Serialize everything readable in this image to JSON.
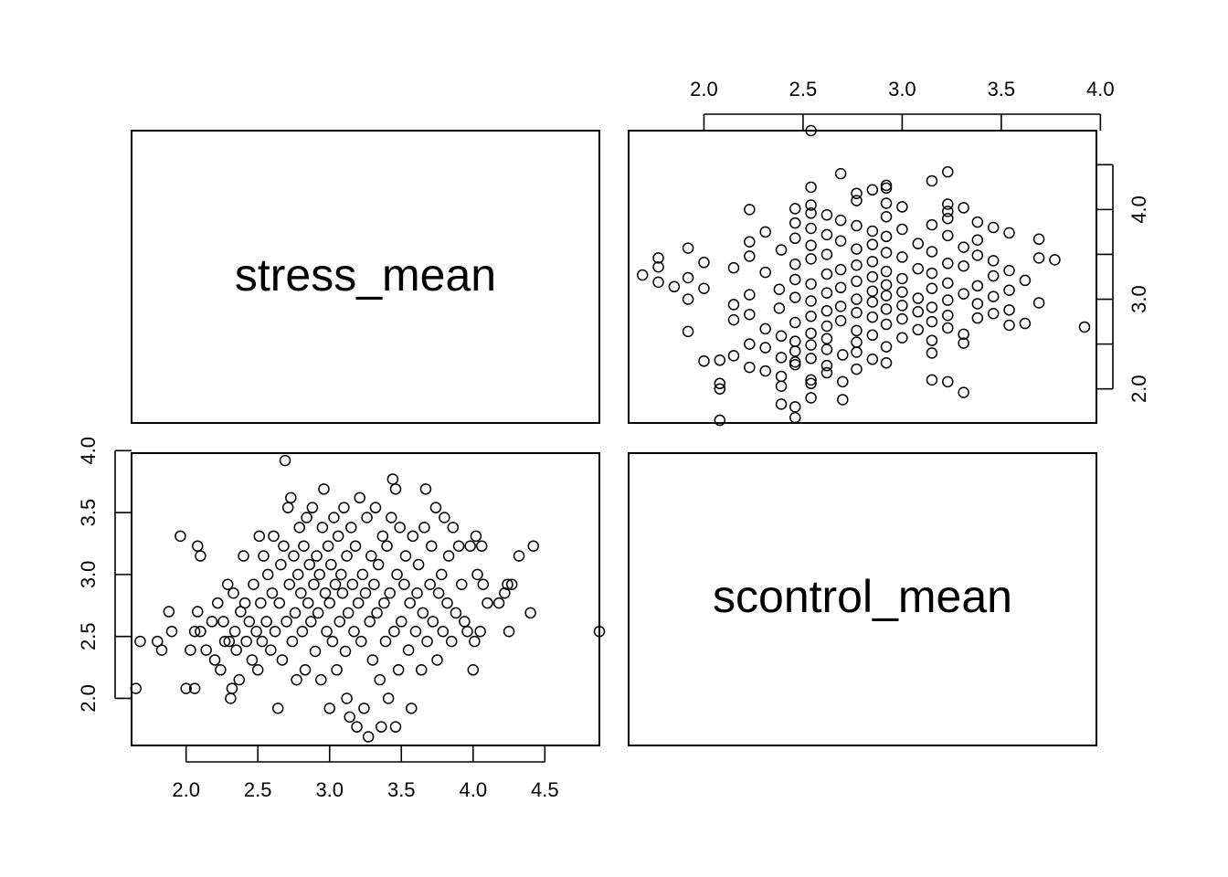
{
  "chart_data": {
    "type": "scatter",
    "title": "",
    "variables": [
      "stress_mean",
      "scontrol_mean"
    ],
    "x_stress_ticks": [
      "2.0",
      "2.5",
      "3.0",
      "3.5",
      "4.0"
    ],
    "y_scontrol_ticks": [
      "2.0",
      "2.5",
      "3.0",
      "3.5",
      "4.0"
    ],
    "x_scontrol_ticks": [
      "2.0",
      "2.5",
      "3.0",
      "3.5",
      "4.0",
      "4.5"
    ],
    "y_stress_ticks": [
      "2.0",
      "2.5",
      "3.0",
      "3.5",
      "4.0"
    ],
    "stress_range": [
      1.62,
      3.98
    ],
    "scontrol_range": [
      1.62,
      4.88
    ],
    "points_note": "pairs are [scontrol_mean, stress_mean]",
    "points": [
      [
        1.65,
        2.08
      ],
      [
        1.68,
        2.46
      ],
      [
        1.8,
        2.46
      ],
      [
        1.83,
        2.39
      ],
      [
        1.88,
        2.7
      ],
      [
        1.9,
        2.54
      ],
      [
        1.96,
        3.31
      ],
      [
        2.0,
        2.08
      ],
      [
        2.03,
        2.39
      ],
      [
        2.06,
        2.08
      ],
      [
        2.06,
        2.54
      ],
      [
        2.08,
        3.23
      ],
      [
        2.08,
        2.7
      ],
      [
        2.1,
        3.15
      ],
      [
        2.1,
        2.54
      ],
      [
        2.14,
        2.39
      ],
      [
        2.18,
        2.62
      ],
      [
        2.2,
        2.31
      ],
      [
        2.22,
        2.77
      ],
      [
        2.24,
        2.23
      ],
      [
        2.26,
        2.62
      ],
      [
        2.27,
        2.46
      ],
      [
        2.29,
        2.92
      ],
      [
        2.3,
        2.46
      ],
      [
        2.31,
        2.0
      ],
      [
        2.32,
        2.08
      ],
      [
        2.33,
        2.85
      ],
      [
        2.34,
        2.54
      ],
      [
        2.35,
        2.39
      ],
      [
        2.37,
        2.15
      ],
      [
        2.38,
        2.7
      ],
      [
        2.4,
        3.15
      ],
      [
        2.41,
        2.77
      ],
      [
        2.42,
        2.46
      ],
      [
        2.44,
        2.62
      ],
      [
        2.46,
        2.31
      ],
      [
        2.47,
        2.92
      ],
      [
        2.49,
        2.54
      ],
      [
        2.5,
        2.23
      ],
      [
        2.51,
        3.31
      ],
      [
        2.52,
        2.77
      ],
      [
        2.53,
        2.46
      ],
      [
        2.54,
        3.15
      ],
      [
        2.56,
        2.62
      ],
      [
        2.57,
        3.0
      ],
      [
        2.59,
        2.39
      ],
      [
        2.6,
        2.85
      ],
      [
        2.61,
        3.31
      ],
      [
        2.62,
        2.54
      ],
      [
        2.64,
        1.92
      ],
      [
        2.65,
        2.77
      ],
      [
        2.66,
        3.08
      ],
      [
        2.67,
        2.31
      ],
      [
        2.68,
        3.23
      ],
      [
        2.69,
        3.92
      ],
      [
        2.7,
        2.62
      ],
      [
        2.71,
        3.54
      ],
      [
        2.72,
        2.92
      ],
      [
        2.73,
        3.62
      ],
      [
        2.74,
        2.46
      ],
      [
        2.75,
        3.15
      ],
      [
        2.76,
        2.69
      ],
      [
        2.77,
        2.15
      ],
      [
        2.78,
        3.0
      ],
      [
        2.79,
        3.38
      ],
      [
        2.8,
        2.85
      ],
      [
        2.81,
        2.54
      ],
      [
        2.82,
        3.23
      ],
      [
        2.83,
        2.23
      ],
      [
        2.84,
        3.46
      ],
      [
        2.85,
        2.77
      ],
      [
        2.86,
        3.08
      ],
      [
        2.87,
        2.62
      ],
      [
        2.88,
        3.54
      ],
      [
        2.89,
        2.92
      ],
      [
        2.9,
        2.38
      ],
      [
        2.91,
        3.15
      ],
      [
        2.92,
        2.69
      ],
      [
        2.93,
        3.0
      ],
      [
        2.94,
        2.15
      ],
      [
        2.95,
        3.38
      ],
      [
        2.96,
        3.69
      ],
      [
        2.97,
        2.85
      ],
      [
        2.98,
        2.54
      ],
      [
        2.99,
        3.23
      ],
      [
        3.0,
        1.92
      ],
      [
        3.0,
        2.77
      ],
      [
        3.01,
        3.08
      ],
      [
        3.02,
        2.46
      ],
      [
        3.03,
        3.46
      ],
      [
        3.04,
        2.92
      ],
      [
        3.05,
        2.23
      ],
      [
        3.06,
        3.31
      ],
      [
        3.07,
        2.62
      ],
      [
        3.08,
        3.0
      ],
      [
        3.09,
        2.85
      ],
      [
        3.1,
        3.54
      ],
      [
        3.11,
        2.38
      ],
      [
        3.12,
        3.15
      ],
      [
        3.12,
        2.0
      ],
      [
        3.13,
        2.69
      ],
      [
        3.14,
        1.85
      ],
      [
        3.15,
        3.38
      ],
      [
        3.16,
        2.92
      ],
      [
        3.17,
        2.54
      ],
      [
        3.18,
        3.23
      ],
      [
        3.19,
        1.77
      ],
      [
        3.2,
        2.77
      ],
      [
        3.21,
        3.62
      ],
      [
        3.22,
        2.46
      ],
      [
        3.23,
        3.0
      ],
      [
        3.24,
        1.92
      ],
      [
        3.25,
        2.85
      ],
      [
        3.26,
        3.46
      ],
      [
        3.27,
        1.69
      ],
      [
        3.28,
        2.62
      ],
      [
        3.29,
        3.15
      ],
      [
        3.3,
        2.31
      ],
      [
        3.31,
        2.92
      ],
      [
        3.32,
        3.54
      ],
      [
        3.33,
        2.69
      ],
      [
        3.34,
        3.08
      ],
      [
        3.35,
        2.15
      ],
      [
        3.36,
        1.77
      ],
      [
        3.37,
        3.31
      ],
      [
        3.38,
        2.77
      ],
      [
        3.39,
        2.46
      ],
      [
        3.4,
        3.23
      ],
      [
        3.41,
        2.0
      ],
      [
        3.42,
        2.85
      ],
      [
        3.43,
        3.46
      ],
      [
        3.44,
        3.77
      ],
      [
        3.45,
        2.54
      ],
      [
        3.46,
        3.69
      ],
      [
        3.46,
        1.77
      ],
      [
        3.47,
        3.0
      ],
      [
        3.48,
        2.23
      ],
      [
        3.49,
        3.38
      ],
      [
        3.5,
        2.62
      ],
      [
        3.52,
        2.92
      ],
      [
        3.53,
        3.15
      ],
      [
        3.55,
        2.39
      ],
      [
        3.56,
        2.77
      ],
      [
        3.57,
        1.92
      ],
      [
        3.58,
        3.31
      ],
      [
        3.6,
        2.54
      ],
      [
        3.61,
        2.85
      ],
      [
        3.62,
        3.08
      ],
      [
        3.64,
        2.23
      ],
      [
        3.65,
        2.69
      ],
      [
        3.66,
        3.38
      ],
      [
        3.67,
        3.69
      ],
      [
        3.68,
        2.46
      ],
      [
        3.7,
        2.92
      ],
      [
        3.71,
        3.23
      ],
      [
        3.72,
        2.62
      ],
      [
        3.74,
        3.54
      ],
      [
        3.75,
        2.31
      ],
      [
        3.76,
        2.85
      ],
      [
        3.78,
        3.0
      ],
      [
        3.79,
        2.54
      ],
      [
        3.8,
        3.46
      ],
      [
        3.82,
        2.77
      ],
      [
        3.83,
        3.15
      ],
      [
        3.85,
        2.46
      ],
      [
        3.86,
        3.38
      ],
      [
        3.88,
        2.69
      ],
      [
        3.9,
        3.23
      ],
      [
        3.92,
        2.92
      ],
      [
        3.94,
        2.62
      ],
      [
        3.96,
        2.54
      ],
      [
        3.98,
        3.23
      ],
      [
        4.0,
        2.23
      ],
      [
        4.01,
        2.46
      ],
      [
        4.02,
        3.31
      ],
      [
        4.03,
        3.0
      ],
      [
        4.05,
        2.54
      ],
      [
        4.06,
        3.23
      ],
      [
        4.07,
        2.92
      ],
      [
        4.1,
        2.77
      ],
      [
        4.18,
        2.77
      ],
      [
        4.22,
        2.85
      ],
      [
        4.24,
        2.92
      ],
      [
        4.25,
        2.54
      ],
      [
        4.27,
        2.92
      ],
      [
        4.32,
        3.15
      ],
      [
        4.4,
        2.69
      ],
      [
        4.42,
        3.23
      ],
      [
        4.88,
        2.54
      ]
    ]
  },
  "labels": {
    "diag_top_left": "stress_mean",
    "diag_bottom_right": "scontrol_mean"
  }
}
